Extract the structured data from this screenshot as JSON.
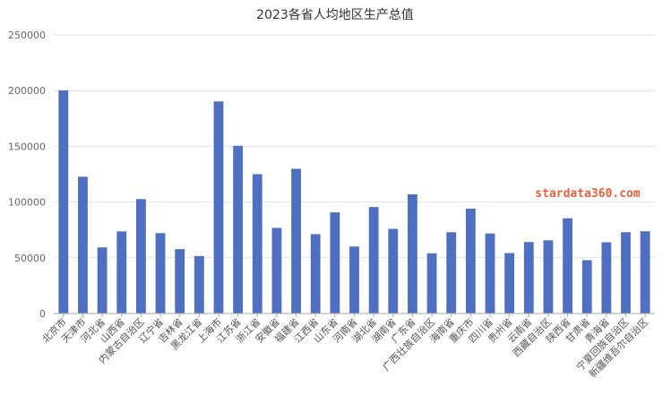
{
  "chart_data": {
    "type": "bar",
    "title": "2023各省人均地区生产总值",
    "xlabel": "",
    "ylabel": "",
    "ylim": [
      0,
      250000
    ],
    "yticks": [
      0,
      50000,
      100000,
      150000,
      200000,
      250000
    ],
    "ytick_labels": [
      "0",
      "50000",
      "100000",
      "150000",
      "200000",
      "250000"
    ],
    "grid": true,
    "legend": "none",
    "bar_color": "#4f6fc0",
    "categories": [
      "北京市",
      "天津市",
      "河北省",
      "山西省",
      "内蒙古自治区",
      "辽宁省",
      "吉林省",
      "黑龙江省",
      "上海市",
      "江苏省",
      "浙江省",
      "安徽省",
      "福建省",
      "江西省",
      "山东省",
      "河南省",
      "湖北省",
      "湖南省",
      "广东省",
      "广西壮族自治区",
      "海南省",
      "重庆市",
      "四川省",
      "贵州省",
      "云南省",
      "西藏自治区",
      "陕西省",
      "甘肃省",
      "青海省",
      "宁夏回族自治区",
      "新疆维吾尔自治区"
    ],
    "values": [
      200278,
      122752,
      59332,
      73675,
      102677,
      72107,
      57739,
      51563,
      190321,
      150487,
      125043,
      76830,
      129865,
      71216,
      90771,
      60073,
      95538,
      75938,
      106985,
      54005,
      72958,
      94135,
      71835,
      54172,
      64107,
      65660,
      85448,
      47867,
      63903,
      72957,
      73774
    ]
  },
  "watermark": {
    "text": "stardata360.com",
    "color": "#e8603c"
  }
}
